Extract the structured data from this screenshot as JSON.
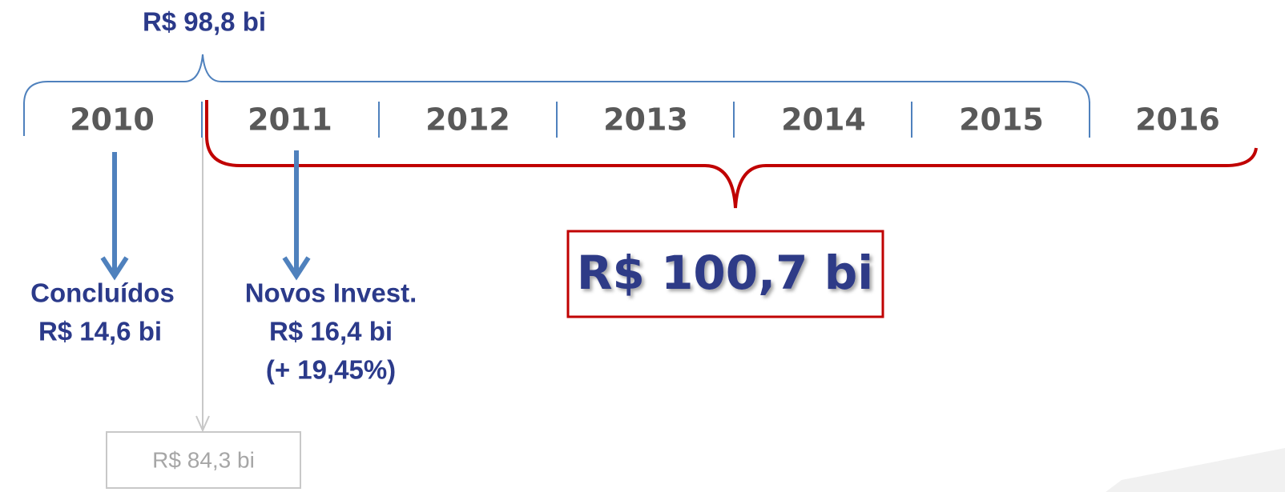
{
  "header": {
    "total": "R$ 98,8 bi"
  },
  "timeline": {
    "years": [
      "2010",
      "2011",
      "2012",
      "2013",
      "2014",
      "2015",
      "2016"
    ]
  },
  "concluded": {
    "label": "Concluídos",
    "value": "R$ 14,6 bi"
  },
  "new_investments": {
    "label": "Novos Invest.",
    "value": "R$ 16,4 bi",
    "change": "(+ 19,45%)"
  },
  "remaining": {
    "value": "R$ 84,3 bi"
  },
  "new_total": {
    "value": "R$ 100,7 bi"
  }
}
